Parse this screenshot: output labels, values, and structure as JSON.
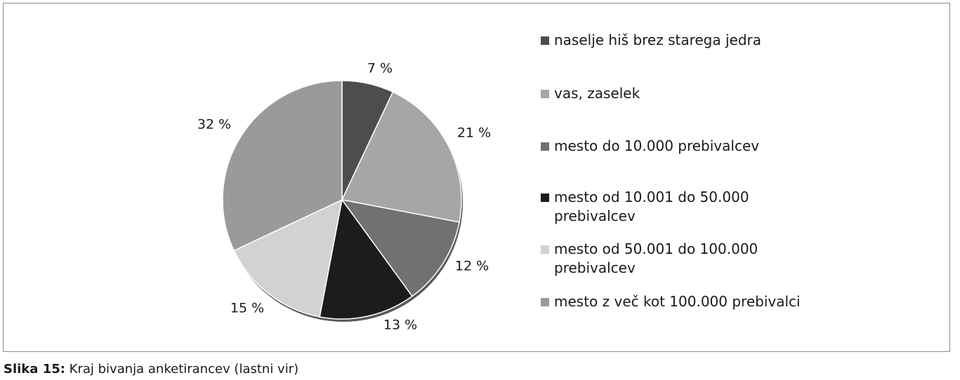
{
  "chart_data": {
    "type": "pie",
    "title": "",
    "slices": [
      {
        "label": "naselje hiš brez starega jedra",
        "value": 7,
        "value_label": "7 %",
        "color": "#4d4d4d"
      },
      {
        "label": "vas, zaselek",
        "value": 21,
        "value_label": "21 %",
        "color": "#a6a6a6"
      },
      {
        "label": "mesto do 10.000 prebivalcev",
        "value": 12,
        "value_label": "12 %",
        "color": "#717171"
      },
      {
        "label": "mesto od 10.001 do 50.000 prebivalcev",
        "value": 13,
        "value_label": "13 %",
        "color": "#1c1c1c"
      },
      {
        "label": "mesto od 50.001 do 100.000 prebivalcev",
        "value": 15,
        "value_label": "15 %",
        "color": "#d2d2d2"
      },
      {
        "label": "mesto z več kot 100.000 prebivalci",
        "value": 32,
        "value_label": "32 %",
        "color": "#9a9a9a"
      }
    ],
    "legend_position": "right"
  },
  "caption": {
    "label": "Slika 15:",
    "text": "Kraj bivanja anketirancev (lastni vir)"
  }
}
